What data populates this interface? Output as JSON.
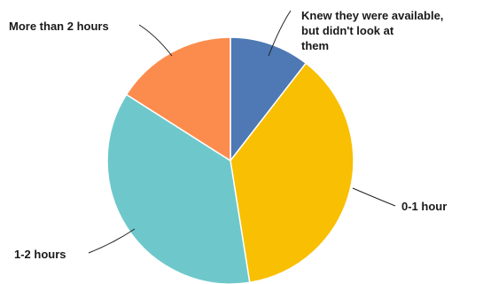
{
  "chart_data": {
    "type": "pie",
    "title": "",
    "start_angle_deg": 0,
    "direction": "clockwise",
    "slices": [
      {
        "label": "Knew they were available, but didn't look at them",
        "label_lines": [
          "Knew they were available,",
          "but didn't look at",
          "them"
        ],
        "value": 10.5,
        "color": "#4e79b4"
      },
      {
        "label": "0-1 hour",
        "label_lines": [
          "0-1 hour"
        ],
        "value": 37.0,
        "color": "#f9bf03"
      },
      {
        "label": "1-2 hours",
        "label_lines": [
          "1-2 hours"
        ],
        "value": 36.5,
        "color": "#6ec8cb"
      },
      {
        "label": "More than 2 hours",
        "label_lines": [
          "More than 2 hours"
        ],
        "value": 16.0,
        "color": "#fc8c4e"
      }
    ],
    "legend": "none"
  }
}
